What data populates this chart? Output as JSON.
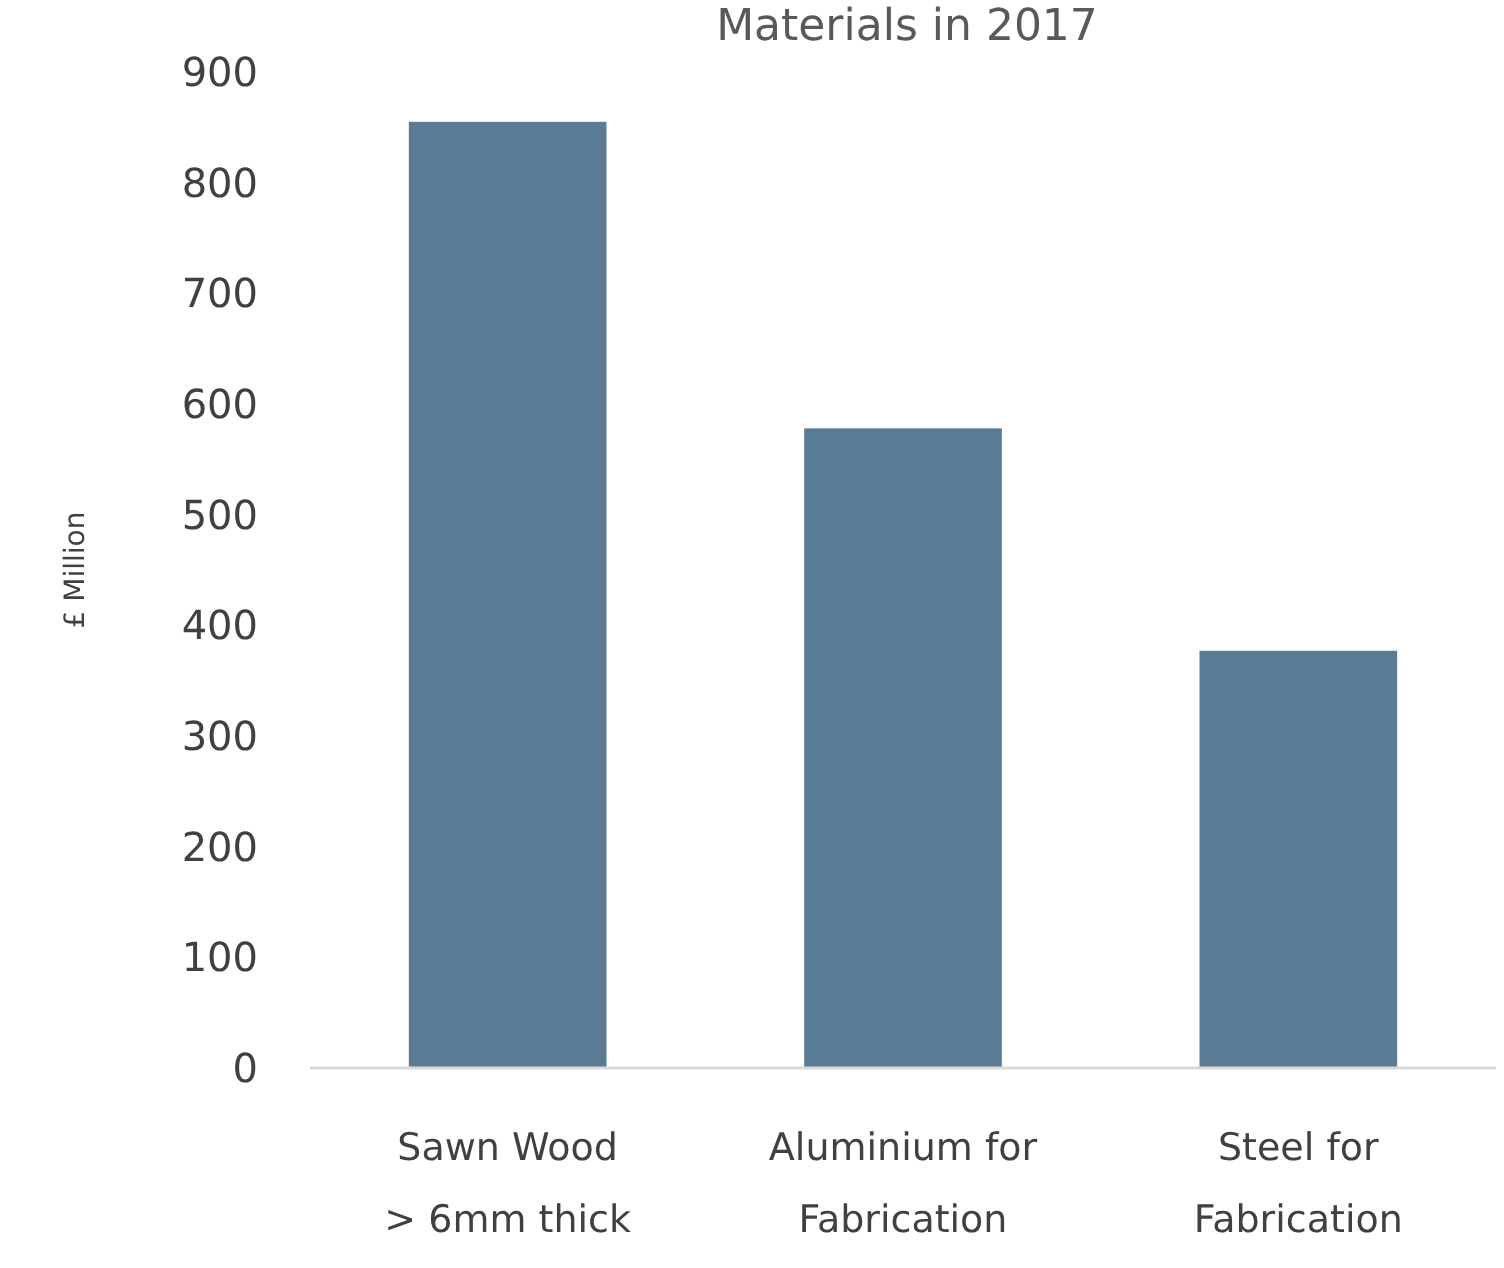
{
  "chart_data": {
    "type": "bar",
    "title": "Materials in 2017",
    "ylabel": "£ Million",
    "categories": [
      "Sawn Wood\n> 6mm thick",
      "Aluminium for\nFabrication",
      "Steel for\nFabrication"
    ],
    "values": [
      855,
      578,
      377
    ],
    "color": "#5a7b94",
    "ylim": [
      0,
      900
    ],
    "yticks": [
      0,
      100,
      200,
      300,
      400,
      500,
      600,
      700,
      800,
      900
    ],
    "grid": false
  }
}
